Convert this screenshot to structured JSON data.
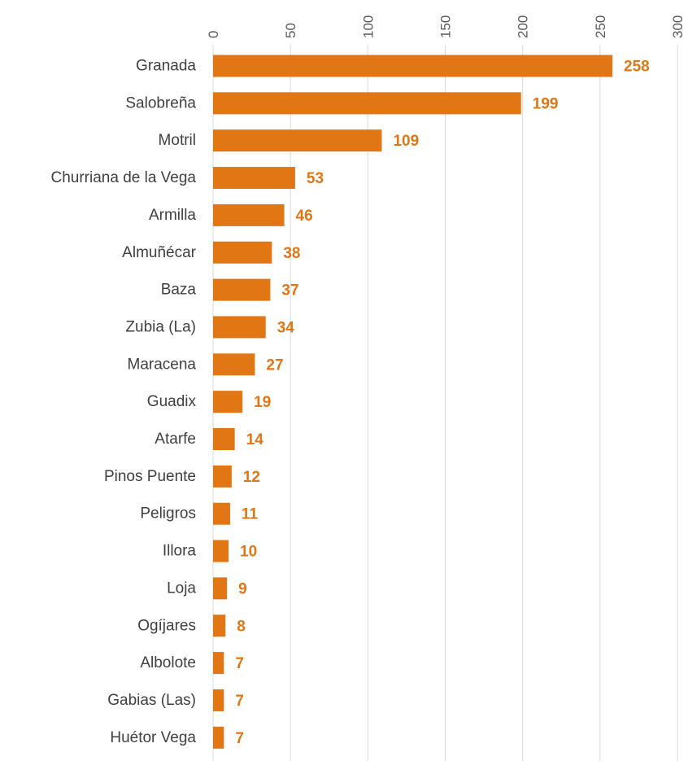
{
  "chart_data": {
    "type": "bar",
    "orientation": "horizontal",
    "title": "",
    "xlabel": "",
    "ylabel": "",
    "categories": [
      "Granada",
      "Salobreña",
      "Motril",
      "Churriana de la Vega",
      "Armilla",
      "Almuñécar",
      "Baza",
      "Zubia (La)",
      "Maracena",
      "Guadix",
      "Atarfe",
      "Pinos Puente",
      "Peligros",
      "Illora",
      "Loja",
      "Ogíjares",
      "Albolote",
      "Gabias (Las)",
      "Huétor Vega"
    ],
    "values": [
      258,
      199,
      109,
      53,
      46,
      38,
      37,
      34,
      27,
      19,
      14,
      12,
      11,
      10,
      9,
      8,
      7,
      7,
      7
    ],
    "xlim": [
      0,
      300
    ],
    "ticks": [
      0,
      50,
      100,
      150,
      200,
      250,
      300
    ],
    "axis_position": "top",
    "tick_label_rotation": "vertical",
    "grid": true,
    "legend": "none",
    "data_labels": true,
    "colors": {
      "bar": "#E07614",
      "value_label": "#E07614",
      "gridline": "#D9D9D9",
      "category_text": "#404040",
      "tick_text": "#595959"
    }
  }
}
